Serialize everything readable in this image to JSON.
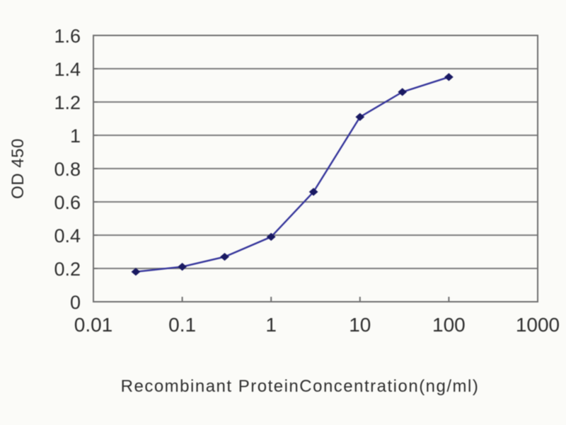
{
  "chart_data": {
    "type": "line",
    "title": "",
    "xlabel": "Recombinant ProteinConcentration(ng/ml)",
    "ylabel": "OD 450",
    "x_scale": "log",
    "xlim": [
      0.01,
      1000
    ],
    "ylim": [
      0,
      1.6
    ],
    "x_tick_labels": [
      "0.01",
      "0.1",
      "1",
      "10",
      "100",
      "1000"
    ],
    "x_tick_values": [
      0.01,
      0.1,
      1,
      10,
      100,
      1000
    ],
    "y_tick_labels": [
      "0",
      "0.2",
      "0.4",
      "0.6",
      "0.8",
      "1",
      "1.2",
      "1.4",
      "1.6"
    ],
    "y_tick_values": [
      0,
      0.2,
      0.4,
      0.6,
      0.8,
      1,
      1.2,
      1.4,
      1.6
    ],
    "grid": "horizontal",
    "legend": "none",
    "series": [
      {
        "name": "standard-curve",
        "marker": "diamond",
        "x": [
          0.03,
          0.1,
          0.3,
          1,
          3,
          10,
          30,
          100
        ],
        "y": [
          0.18,
          0.21,
          0.27,
          0.39,
          0.66,
          1.11,
          1.26,
          1.35
        ]
      }
    ],
    "colors": {
      "line": "#35359b",
      "marker": "#1a1a62",
      "grid": "#7e7e7e",
      "frame": "#6f6f6f",
      "text": "#2e2e2e",
      "background": "#fbfbf8"
    }
  }
}
